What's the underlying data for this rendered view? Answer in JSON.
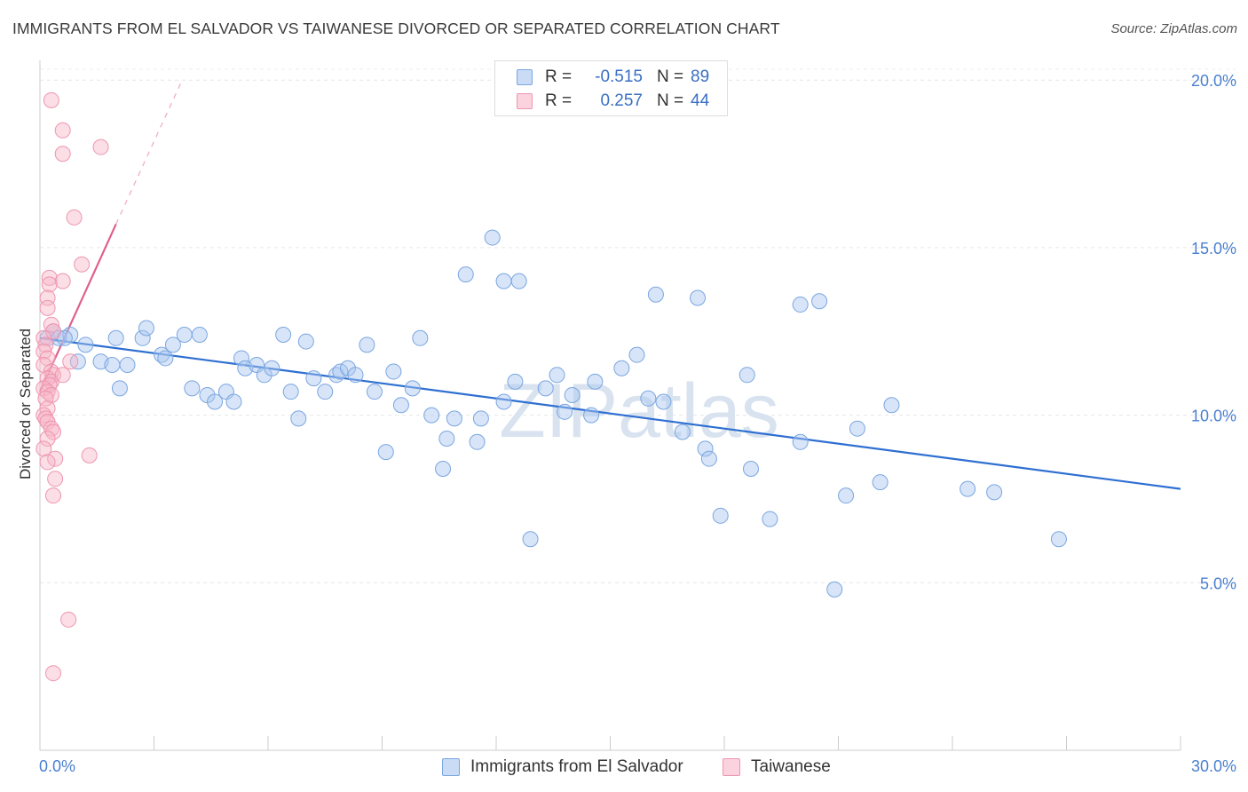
{
  "title": "IMMIGRANTS FROM EL SALVADOR VS TAIWANESE DIVORCED OR SEPARATED CORRELATION CHART",
  "source": "Source: ZipAtlas.com",
  "watermark": "ZIPatlas",
  "legend": {
    "r_label": "R =",
    "n_label": "N =",
    "rows": [
      {
        "r": "-0.515",
        "n": "89",
        "color": "#a9c6f0"
      },
      {
        "r": "0.257",
        "n": "44",
        "color": "#f7b6c8"
      }
    ]
  },
  "bottom_legend": [
    "Immigrants from El Salvador",
    "Taiwanese"
  ],
  "colors": {
    "blue_fill": "#a9c6f0",
    "blue_line": "#2e6fd1",
    "pink_fill": "#f7b6c8",
    "pink_line": "#e0608a",
    "tick": "#4a7fd0"
  },
  "chart_data": {
    "type": "scatter",
    "ylabel": "Divorced or Separated",
    "xlim": [
      0,
      30
    ],
    "ylim": [
      0,
      20.8
    ],
    "x_tick_labels": [
      "0.0%",
      "30.0%"
    ],
    "y_tick_labels": [
      "20.0%",
      "15.0%",
      "10.0%",
      "5.0%"
    ],
    "y_ticks": [
      20,
      15,
      10,
      5
    ],
    "grid": true,
    "series": [
      {
        "name": "Immigrants from El Salvador",
        "color": "#a9c6f0",
        "points": [
          [
            0.2,
            12.3
          ],
          [
            0.35,
            12.5
          ],
          [
            0.5,
            12.3
          ],
          [
            0.8,
            12.4
          ],
          [
            0.65,
            12.3
          ],
          [
            1.2,
            12.1
          ],
          [
            1.0,
            11.6
          ],
          [
            1.6,
            11.6
          ],
          [
            1.9,
            11.5
          ],
          [
            2.0,
            12.3
          ],
          [
            2.3,
            11.5
          ],
          [
            2.1,
            10.8
          ],
          [
            2.7,
            12.3
          ],
          [
            2.8,
            12.6
          ],
          [
            3.2,
            11.8
          ],
          [
            3.3,
            11.7
          ],
          [
            3.5,
            12.1
          ],
          [
            3.8,
            12.4
          ],
          [
            4.2,
            12.4
          ],
          [
            4.0,
            10.8
          ],
          [
            4.4,
            10.6
          ],
          [
            4.6,
            10.4
          ],
          [
            4.9,
            10.7
          ],
          [
            5.1,
            10.4
          ],
          [
            5.3,
            11.7
          ],
          [
            5.4,
            11.4
          ],
          [
            5.7,
            11.5
          ],
          [
            5.9,
            11.2
          ],
          [
            6.1,
            11.4
          ],
          [
            6.4,
            12.4
          ],
          [
            6.6,
            10.7
          ],
          [
            6.8,
            9.9
          ],
          [
            7.0,
            12.2
          ],
          [
            7.2,
            11.1
          ],
          [
            7.5,
            10.7
          ],
          [
            7.8,
            11.2
          ],
          [
            7.9,
            11.3
          ],
          [
            8.1,
            11.4
          ],
          [
            8.3,
            11.2
          ],
          [
            8.6,
            12.1
          ],
          [
            8.8,
            10.7
          ],
          [
            9.1,
            8.9
          ],
          [
            9.3,
            11.3
          ],
          [
            9.5,
            10.3
          ],
          [
            9.8,
            10.8
          ],
          [
            10.0,
            12.3
          ],
          [
            10.3,
            10.0
          ],
          [
            10.6,
            8.4
          ],
          [
            10.7,
            9.3
          ],
          [
            10.9,
            9.9
          ],
          [
            11.2,
            14.2
          ],
          [
            11.5,
            9.2
          ],
          [
            11.6,
            9.9
          ],
          [
            11.9,
            15.3
          ],
          [
            12.2,
            10.4
          ],
          [
            12.2,
            14.0
          ],
          [
            12.5,
            11.0
          ],
          [
            12.6,
            14.0
          ],
          [
            12.9,
            6.3
          ],
          [
            13.3,
            10.8
          ],
          [
            13.6,
            11.2
          ],
          [
            13.8,
            10.1
          ],
          [
            14.0,
            10.6
          ],
          [
            14.5,
            10.0
          ],
          [
            14.6,
            11.0
          ],
          [
            15.3,
            11.4
          ],
          [
            15.7,
            11.8
          ],
          [
            16.0,
            10.5
          ],
          [
            16.2,
            13.6
          ],
          [
            16.4,
            10.4
          ],
          [
            16.9,
            9.5
          ],
          [
            17.3,
            13.5
          ],
          [
            17.5,
            9.0
          ],
          [
            17.6,
            8.7
          ],
          [
            17.9,
            7.0
          ],
          [
            18.6,
            11.2
          ],
          [
            18.7,
            8.4
          ],
          [
            19.2,
            6.9
          ],
          [
            20.0,
            13.3
          ],
          [
            20.0,
            9.2
          ],
          [
            20.5,
            13.4
          ],
          [
            20.9,
            4.8
          ],
          [
            21.2,
            7.6
          ],
          [
            21.5,
            9.6
          ],
          [
            22.1,
            8.0
          ],
          [
            22.4,
            10.3
          ],
          [
            24.4,
            7.8
          ],
          [
            25.1,
            7.7
          ],
          [
            26.8,
            6.3
          ]
        ],
        "trend": [
          [
            0.0,
            12.3
          ],
          [
            30.0,
            7.8
          ]
        ]
      },
      {
        "name": "Taiwanese",
        "color": "#f7b6c8",
        "points": [
          [
            0.3,
            19.4
          ],
          [
            0.6,
            18.5
          ],
          [
            0.6,
            17.8
          ],
          [
            1.6,
            18.0
          ],
          [
            0.9,
            15.9
          ],
          [
            1.1,
            14.5
          ],
          [
            0.25,
            14.1
          ],
          [
            0.6,
            14.0
          ],
          [
            0.25,
            13.9
          ],
          [
            0.2,
            13.5
          ],
          [
            0.2,
            13.2
          ],
          [
            0.3,
            12.7
          ],
          [
            0.35,
            12.5
          ],
          [
            0.1,
            12.3
          ],
          [
            0.15,
            12.1
          ],
          [
            0.1,
            11.9
          ],
          [
            0.2,
            11.7
          ],
          [
            0.8,
            11.6
          ],
          [
            0.1,
            11.5
          ],
          [
            0.3,
            11.3
          ],
          [
            0.35,
            11.2
          ],
          [
            0.2,
            11.1
          ],
          [
            0.3,
            11.0
          ],
          [
            0.25,
            10.9
          ],
          [
            0.1,
            10.8
          ],
          [
            0.2,
            10.7
          ],
          [
            0.3,
            10.6
          ],
          [
            0.15,
            10.5
          ],
          [
            0.2,
            10.2
          ],
          [
            0.1,
            10.0
          ],
          [
            0.15,
            9.9
          ],
          [
            0.2,
            9.8
          ],
          [
            0.3,
            9.6
          ],
          [
            0.35,
            9.5
          ],
          [
            0.2,
            9.3
          ],
          [
            0.1,
            9.0
          ],
          [
            1.3,
            8.8
          ],
          [
            0.4,
            8.7
          ],
          [
            0.2,
            8.6
          ],
          [
            0.4,
            8.1
          ],
          [
            0.35,
            7.6
          ],
          [
            0.75,
            3.9
          ],
          [
            0.35,
            2.3
          ],
          [
            0.6,
            11.2
          ]
        ],
        "trend": [
          [
            0.0,
            10.7
          ],
          [
            2.0,
            15.7
          ]
        ],
        "trend_dashed": [
          [
            2.0,
            15.7
          ],
          [
            3.7,
            19.9
          ]
        ]
      }
    ]
  }
}
